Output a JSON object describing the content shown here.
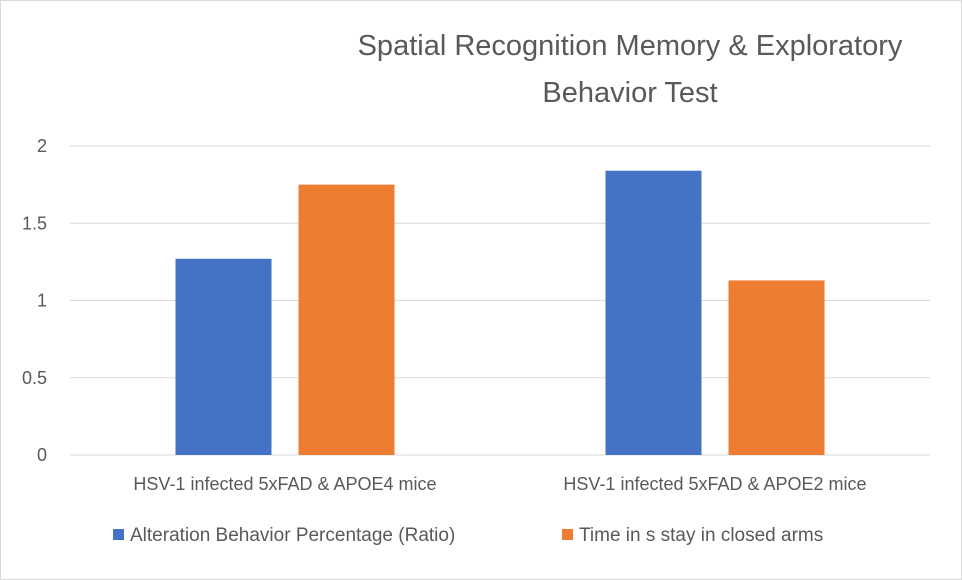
{
  "chart_data": {
    "type": "bar",
    "title_lines": [
      "Spatial Recognition Memory & Exploratory",
      "Behavior Test"
    ],
    "categories": [
      "HSV-1 infected 5xFAD & APOE4 mice",
      "HSV-1 infected 5xFAD & APOE2 mice"
    ],
    "series": [
      {
        "name": "Alteration Behavior Percentage (Ratio)",
        "values": [
          1.27,
          1.84
        ],
        "color": "#4472C4"
      },
      {
        "name": "Time in s stay in closed arms",
        "values": [
          1.75,
          1.13
        ],
        "color": "#ED7D31"
      }
    ],
    "yticks": [
      "0",
      "0.5",
      "1",
      "1.5",
      "2"
    ],
    "ylim": [
      0,
      2
    ],
    "grid": true,
    "legend_position": "bottom"
  }
}
